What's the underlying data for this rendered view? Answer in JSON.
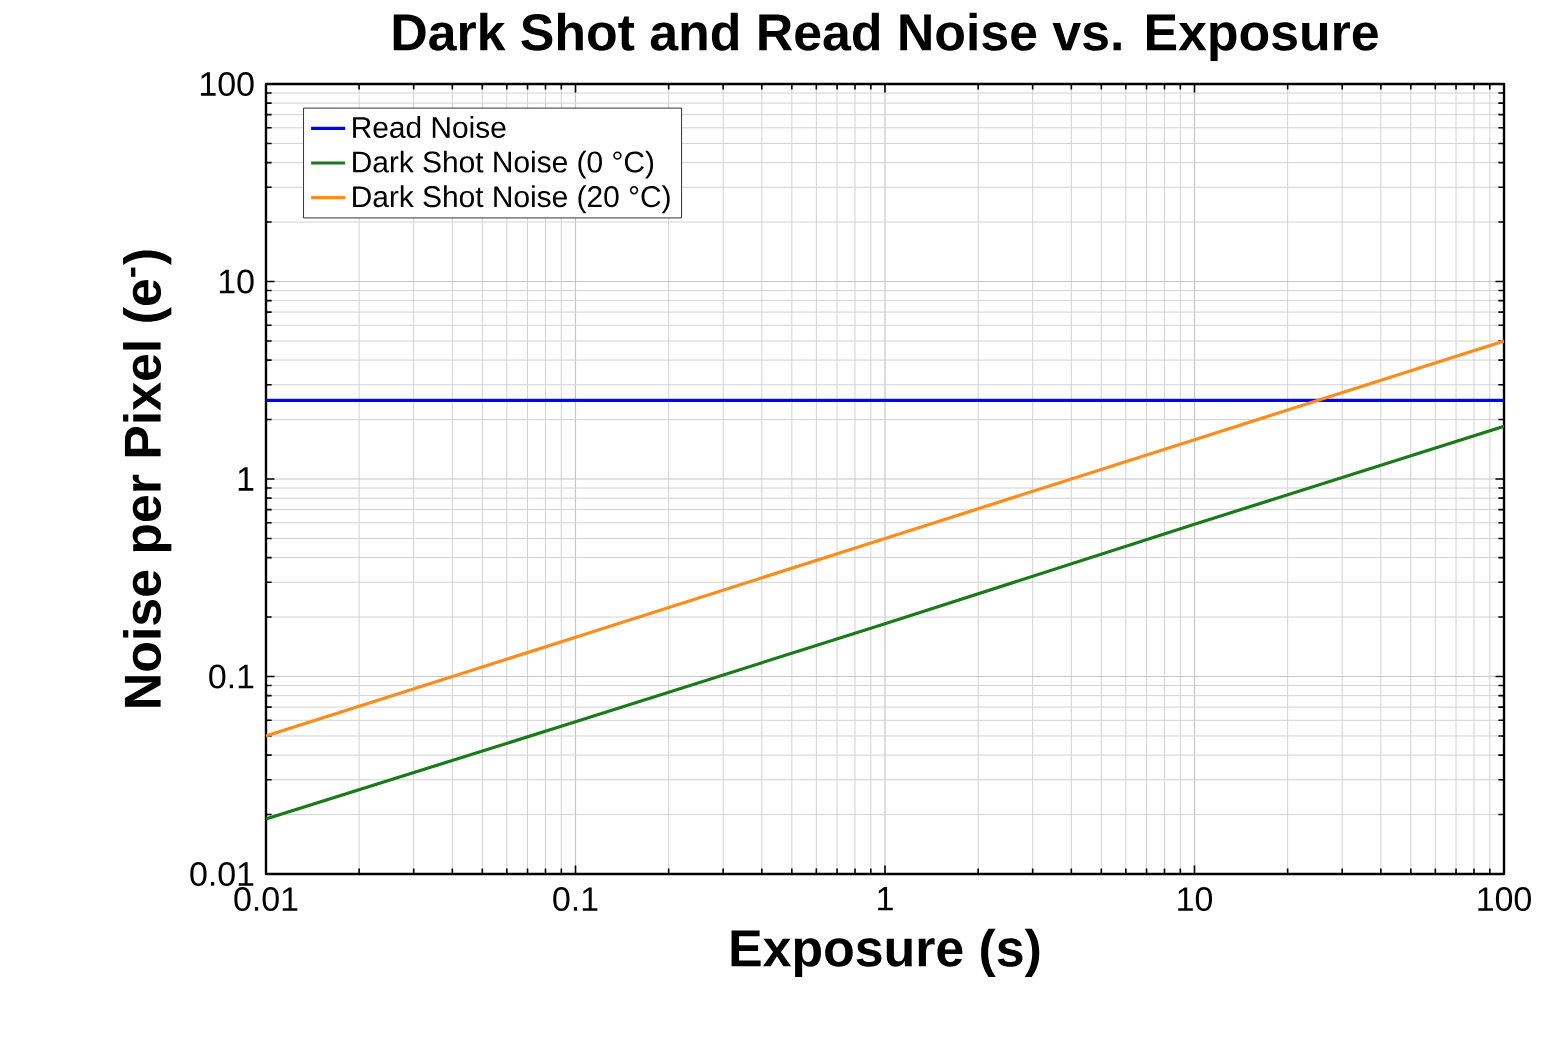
{
  "chart_data": {
    "type": "line",
    "title": "Dark Shot and Read Noise vs. Exposure",
    "xlabel": "Exposure (s)",
    "ylabel": "Noise per Pixel (e$^{-}$)",
    "log": "xy",
    "xlim": [
      0.01,
      100
    ],
    "ylim": [
      0.01,
      100
    ],
    "xticks": [
      0.01,
      0.1,
      1,
      10,
      100
    ],
    "yticks": [
      0.01,
      0.1,
      1,
      10,
      100
    ],
    "grid": true,
    "legend": "top left",
    "x": [
      0.01,
      0.1,
      1,
      10,
      100
    ],
    "series": [
      {
        "name": "Read Noise",
        "color": "#0000ff",
        "values": [
          2.5,
          2.5,
          2.5,
          2.5,
          2.5
        ]
      },
      {
        "name": "Dark Shot Noise (0 °C)",
        "color": "#1a7a1a",
        "values": [
          0.019,
          0.059,
          0.185,
          0.59,
          1.85
        ]
      },
      {
        "name": "Dark Shot Noise (20 °C)",
        "color": "#ff8c1a",
        "values": [
          0.05,
          0.158,
          0.5,
          1.58,
          5
        ]
      }
    ]
  }
}
